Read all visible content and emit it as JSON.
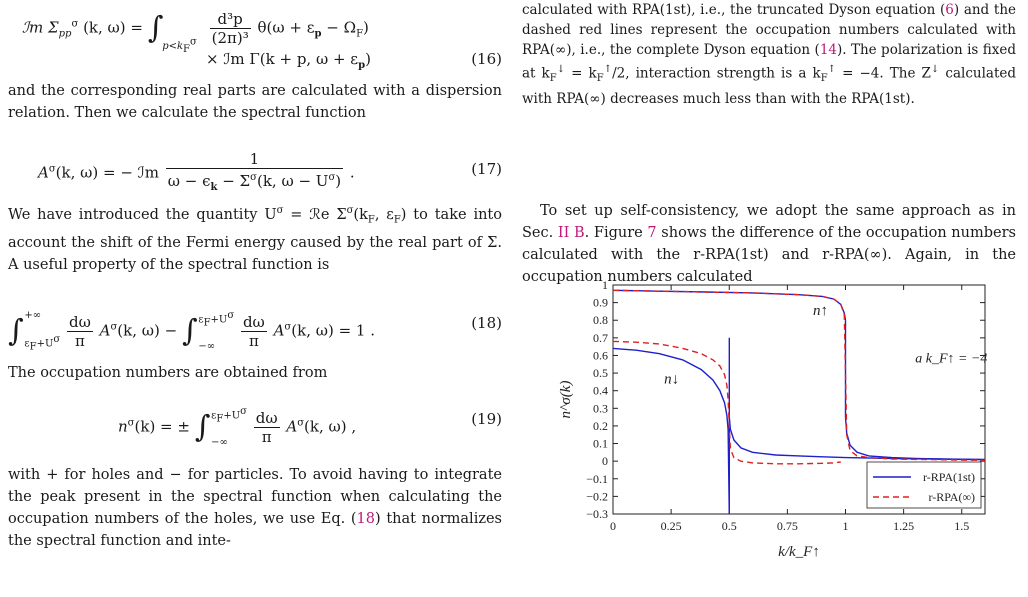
{
  "left_column": {
    "eq16_lhs": "ℐm Σ",
    "eq16_lhs_sub": "pp",
    "eq16_lhs_sup": "σ",
    "eq16_lhs_args": "(k, ω) =",
    "eq16_int_lower": "p<k",
    "eq16_int_lower_sub": "F",
    "eq16_int_lower_sup": "σ",
    "eq16_frac_num": "d³p",
    "eq16_frac_den": "(2π)³",
    "eq16_theta": "θ(ω + ε",
    "eq16_theta_sub": "p",
    "eq16_theta_mid": "− Ω",
    "eq16_theta_sub2": "F",
    "eq16_theta_end": ")",
    "eq16_line2": "× ℐm Γ(k + p, ω + ε",
    "eq16_line2_sub": "p",
    "eq16_line2_end": ")",
    "eq16_number": "(16)",
    "para1": "and the corresponding real parts are calculated with a dispersion relation. Then we calculate the spectral function",
    "eq17_lhs": "A",
    "eq17_lhs_sup": "σ",
    "eq17_lhs_args": "(k, ω) = − ℐm",
    "eq17_num": "1",
    "eq17_den": "ω − ϵ",
    "eq17_den_sub": "k",
    "eq17_den_mid": "− Σ",
    "eq17_den_sup": "σ",
    "eq17_den_end": "(k, ω − U",
    "eq17_den_sup2": "σ",
    "eq17_den_close": ")",
    "eq17_period": ".",
    "eq17_number": "(17)",
    "para2_a": "We have introduced the quantity U",
    "para2_sup": "σ",
    "para2_b": " = ℛe Σ",
    "para2_sup2": "σ",
    "para2_c": "(k",
    "para2_sub": "F",
    "para2_d": ", ε",
    "para2_sub2": "F",
    "para2_e": ") to take into account the shift of the Fermi energy caused by the real part of Σ. A useful property of the spectral function is",
    "eq18_int1_lower": "ε",
    "eq18_int1_lower_sub": "F",
    "eq18_int1_lower_end": "+U",
    "eq18_int1_lower_sup": "σ",
    "eq18_int1_upper": "+∞",
    "eq18_frac_num": "dω",
    "eq18_frac_den": "π",
    "eq18_mid": "A",
    "eq18_mid_sup": "σ",
    "eq18_mid_end": "(k, ω) −",
    "eq18_int2_lower": "−∞",
    "eq18_int2_upper": "ε",
    "eq18_int2_upper_sub": "F",
    "eq18_int2_upper_end": "+U",
    "eq18_int2_upper_sup": "σ",
    "eq18_end": "A",
    "eq18_end_sup": "σ",
    "eq18_end_tail": "(k, ω) = 1 .",
    "eq18_number": "(18)",
    "para3": "The occupation numbers are obtained from",
    "eq19_lhs": "n",
    "eq19_lhs_sup": "σ",
    "eq19_lhs_args": "(k) = ±",
    "eq19_upper": "ε",
    "eq19_upper_sub": "F",
    "eq19_upper_end": "+U",
    "eq19_upper_sup": "σ",
    "eq19_lower": "−∞",
    "eq19_frac_num": "dω",
    "eq19_frac_den": "π",
    "eq19_rhs": "A",
    "eq19_rhs_sup": "σ",
    "eq19_rhs_end": "(k, ω) ,",
    "eq19_number": "(19)",
    "para4_a": "with + for holes and − for particles. To avoid having to integrate the peak present in the spectral function when calculating the occupation numbers of the holes, we use Eq. (",
    "para4_ref": "18",
    "para4_b": ") that normalizes the spectral function and inte-"
  },
  "right_column": {
    "caption_a": "calculated with RPA(1st), i.e., the truncated Dyson equation (",
    "caption_ref1": "6",
    "caption_b": ") and the dashed red lines represent the occupation numbers calculated with RPA(∞), i.e., the complete Dyson equation (",
    "caption_ref2": "14",
    "caption_c": "). The polarization is fixed at k",
    "caption_c_sub": "F",
    "caption_c_sup": "↓",
    "caption_d": " = k",
    "caption_d_sub": "F",
    "caption_d_sup": "↑",
    "caption_e": "/2, interaction strength is a k",
    "caption_e_sub": "F",
    "caption_e_sup": "↑",
    "caption_f": " = −4. The Z",
    "caption_f_sup": "↓",
    "caption_g": " calculated with RPA(∞) decreases much less than with the RPA(1st).",
    "para5_a": "To set up self-consistency, we adopt the same approach as in Sec. ",
    "para5_ref1": "II B",
    "para5_b": ". Figure ",
    "para5_ref2": "7",
    "para5_c": " shows the difference of the occupation numbers calculated with the r-RPA(1st) and r-RPA(∞). Again, in the occupation numbers calculated"
  },
  "chart_data": {
    "type": "line",
    "xlabel": "k/k_F↑",
    "ylabel": "n^σ(k)",
    "xlim": [
      0,
      1.6
    ],
    "ylim": [
      -0.3,
      1.0
    ],
    "x_ticks": [
      "0",
      "0.25",
      "0.5",
      "0.75",
      "1",
      "1.25",
      "1.5"
    ],
    "y_ticks": [
      "1",
      "0.9",
      "0.8",
      "0.7",
      "0.6",
      "0.5",
      "0.4",
      "0.3",
      "0.2",
      "0.1",
      "0",
      "−0.1",
      "−0.2",
      "−0.3"
    ],
    "annotations": [
      "n↑",
      "n↓",
      "a k_F↑ = −4"
    ],
    "legend_position": "bottom-right",
    "series": [
      {
        "name": "r-RPA(1st)",
        "style": "solid",
        "color": "#1f1fcc",
        "segments": [
          {
            "x": [
              0,
              0.1,
              0.2,
              0.3,
              0.38,
              0.43,
              0.46,
              0.48,
              0.49,
              0.495,
              0.5
            ],
            "y": [
              0.64,
              0.63,
              0.61,
              0.575,
              0.52,
              0.46,
              0.4,
              0.33,
              0.26,
              0.18,
              -0.3
            ]
          },
          {
            "x": [
              0.5,
              0.5
            ],
            "y": [
              0.7,
              -0.3
            ]
          },
          {
            "x": [
              0.5,
              0.505,
              0.52,
              0.55,
              0.6,
              0.7,
              0.8,
              0.9,
              1.0,
              1.2,
              1.4,
              1.6
            ],
            "y": [
              0.25,
              0.18,
              0.12,
              0.075,
              0.05,
              0.035,
              0.03,
              0.025,
              0.02,
              0.015,
              0.012,
              0.01
            ]
          },
          {
            "x": [
              0,
              0.2,
              0.4,
              0.6,
              0.8,
              0.9,
              0.95,
              0.98,
              0.995,
              1.0
            ],
            "y": [
              0.97,
              0.965,
              0.96,
              0.955,
              0.945,
              0.935,
              0.92,
              0.89,
              0.84,
              0.8
            ]
          },
          {
            "x": [
              1.0,
              1.0
            ],
            "y": [
              0.8,
              0.25
            ]
          },
          {
            "x": [
              1.0,
              1.005,
              1.02,
              1.05,
              1.1,
              1.2,
              1.3,
              1.4,
              1.5,
              1.6
            ],
            "y": [
              0.25,
              0.16,
              0.09,
              0.05,
              0.03,
              0.02,
              0.015,
              0.012,
              0.01,
              0.008
            ]
          }
        ]
      },
      {
        "name": "r-RPA(∞)",
        "style": "dashed",
        "color": "#e02020",
        "segments": [
          {
            "x": [
              0,
              0.1,
              0.2,
              0.3,
              0.38,
              0.43,
              0.46,
              0.48,
              0.49,
              0.495,
              0.5,
              0.505,
              0.52,
              0.55,
              0.6,
              0.7,
              0.8,
              0.9,
              0.95,
              0.98
            ],
            "y": [
              0.68,
              0.675,
              0.665,
              0.64,
              0.61,
              0.575,
              0.54,
              0.49,
              0.43,
              0.35,
              0.2,
              0.07,
              0.02,
              0.0,
              -0.01,
              -0.015,
              -0.015,
              -0.012,
              -0.01,
              -0.005
            ]
          },
          {
            "x": [
              0,
              0.2,
              0.4,
              0.6,
              0.8,
              0.9,
              0.95,
              0.98,
              0.995,
              1.0,
              1.005,
              1.02,
              1.05,
              1.1,
              1.2,
              1.3,
              1.4,
              1.5,
              1.6
            ],
            "y": [
              0.97,
              0.965,
              0.96,
              0.955,
              0.945,
              0.935,
              0.92,
              0.89,
              0.83,
              0.5,
              0.15,
              0.06,
              0.03,
              0.02,
              0.012,
              0.01,
              0.008,
              0.006,
              0.005
            ]
          }
        ]
      }
    ]
  }
}
